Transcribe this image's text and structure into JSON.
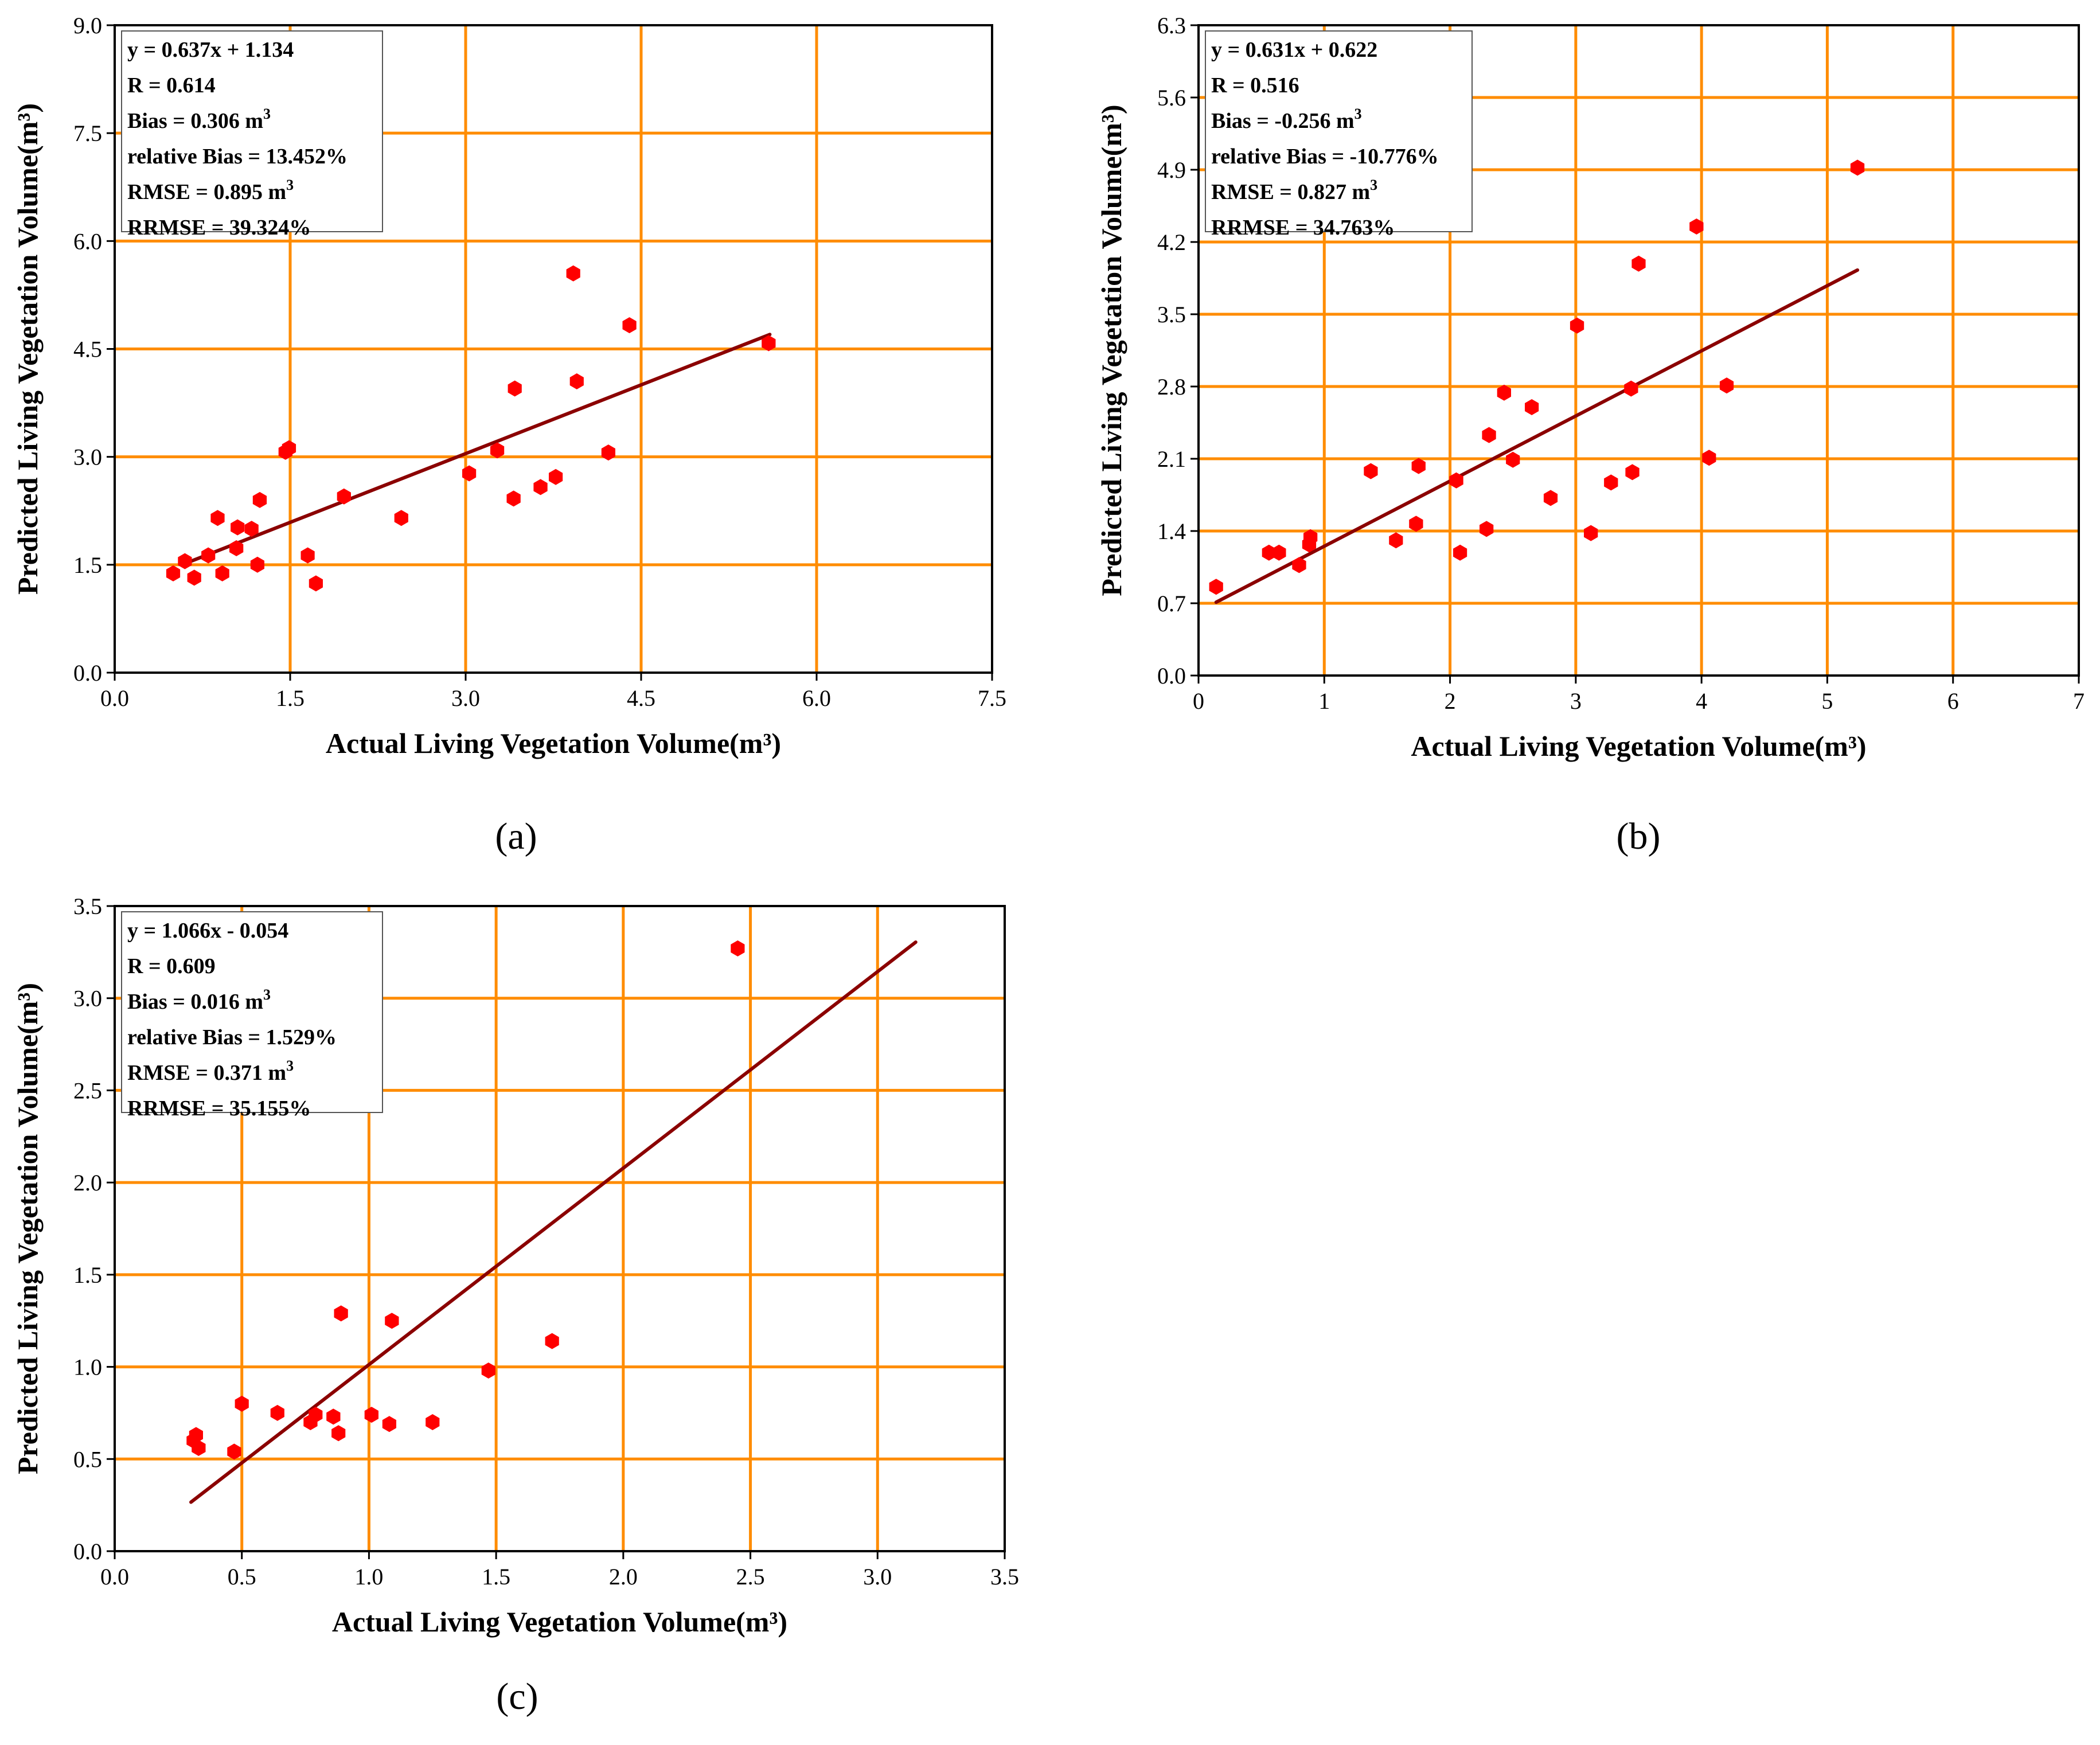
{
  "colors": {
    "grid": "#ff8c00",
    "point": "#ff0000",
    "line": "#8b0000",
    "axis": "#000000"
  },
  "chart_data": [
    {
      "type": "scatter",
      "panel": "(a)",
      "xlabel": "Actual Living Vegetation Volume(m³)",
      "ylabel": "Predicted Living Vegetation Volume(m³)",
      "xlim": [
        0,
        7.5
      ],
      "ylim": [
        0,
        9.0
      ],
      "xticks": [
        "0.0",
        "1.5",
        "3.0",
        "4.5",
        "6.0",
        "7.5"
      ],
      "yticks": [
        "0.0",
        "1.5",
        "3.0",
        "4.5",
        "6.0",
        "7.5",
        "9.0"
      ],
      "fit": {
        "x0": 0.6,
        "y0": 1.516,
        "x1": 5.6,
        "y1": 4.701
      },
      "stats": [
        {
          "text": "y = 0.637x + 1.134",
          "sup": ""
        },
        {
          "text": "R = 0.614",
          "sup": ""
        },
        {
          "text": "Bias = 0.306 m",
          "sup": "3"
        },
        {
          "text": "relative Bias = 13.452%",
          "sup": ""
        },
        {
          "text": "RMSE = 0.895 m",
          "sup": "3"
        },
        {
          "text": "RRMSE = 39.324%",
          "sup": ""
        }
      ],
      "points": [
        [
          0.5,
          1.38
        ],
        [
          0.6,
          1.55
        ],
        [
          0.68,
          1.32
        ],
        [
          0.8,
          1.63
        ],
        [
          0.88,
          2.15
        ],
        [
          0.92,
          1.38
        ],
        [
          1.04,
          1.73
        ],
        [
          1.05,
          2.02
        ],
        [
          1.17,
          2.0
        ],
        [
          1.22,
          1.5
        ],
        [
          1.24,
          2.4
        ],
        [
          1.46,
          3.07
        ],
        [
          1.49,
          3.12
        ],
        [
          1.65,
          1.63
        ],
        [
          1.72,
          1.24
        ],
        [
          1.96,
          2.45
        ],
        [
          2.45,
          2.15
        ],
        [
          3.03,
          2.77
        ],
        [
          3.27,
          3.09
        ],
        [
          3.41,
          2.42
        ],
        [
          3.42,
          3.95
        ],
        [
          3.64,
          2.58
        ],
        [
          3.77,
          2.72
        ],
        [
          3.92,
          5.55
        ],
        [
          3.95,
          4.05
        ],
        [
          4.22,
          3.06
        ],
        [
          4.4,
          4.83
        ],
        [
          5.59,
          4.58
        ]
      ]
    },
    {
      "type": "scatter",
      "panel": "(b)",
      "xlabel": "Actual Living Vegetation Volume(m³)",
      "ylabel": "Predicted Living Vegetation Volume(m³)",
      "xlim": [
        0,
        7
      ],
      "ylim": [
        0,
        6.3
      ],
      "xticks": [
        "0",
        "1",
        "2",
        "3",
        "4",
        "5",
        "6",
        "7"
      ],
      "yticks": [
        "0.0",
        "0.7",
        "1.4",
        "2.1",
        "2.8",
        "3.5",
        "4.2",
        "4.9",
        "5.6",
        "6.3"
      ],
      "fit": {
        "x0": 0.14,
        "y0": 0.71,
        "x1": 5.24,
        "y1": 3.928
      },
      "stats": [
        {
          "text": "y = 0.631x + 0.622",
          "sup": ""
        },
        {
          "text": "R = 0.516",
          "sup": ""
        },
        {
          "text": "Bias = -0.256 m",
          "sup": "3"
        },
        {
          "text": "relative Bias = -10.776%",
          "sup": ""
        },
        {
          "text": "RMSE = 0.827 m",
          "sup": "3"
        },
        {
          "text": "RRMSE = 34.763%",
          "sup": ""
        }
      ],
      "points": [
        [
          0.14,
          0.86
        ],
        [
          0.56,
          1.19
        ],
        [
          0.64,
          1.19
        ],
        [
          0.8,
          1.07
        ],
        [
          0.88,
          1.27
        ],
        [
          0.89,
          1.34
        ],
        [
          1.37,
          1.98
        ],
        [
          1.57,
          1.31
        ],
        [
          1.73,
          1.47
        ],
        [
          1.75,
          2.03
        ],
        [
          2.05,
          1.89
        ],
        [
          2.08,
          1.19
        ],
        [
          2.29,
          1.42
        ],
        [
          2.31,
          2.33
        ],
        [
          2.43,
          2.74
        ],
        [
          2.5,
          2.09
        ],
        [
          2.65,
          2.6
        ],
        [
          2.8,
          1.72
        ],
        [
          3.01,
          3.39
        ],
        [
          3.12,
          1.38
        ],
        [
          3.28,
          1.87
        ],
        [
          3.44,
          2.78
        ],
        [
          3.45,
          1.97
        ],
        [
          3.5,
          3.99
        ],
        [
          3.96,
          4.35
        ],
        [
          4.06,
          2.11
        ],
        [
          4.2,
          2.81
        ],
        [
          5.24,
          4.92
        ]
      ]
    },
    {
      "type": "scatter",
      "panel": "(c)",
      "xlabel": "Actual Living Vegetation Volume(m³)",
      "ylabel": "Predicted Living Vegetation Volume(m³)",
      "xlim": [
        0,
        3.5
      ],
      "ylim": [
        0,
        3.5
      ],
      "xticks": [
        "0.0",
        "0.5",
        "1.0",
        "1.5",
        "2.0",
        "2.5",
        "3.0",
        "3.5"
      ],
      "yticks": [
        "0.0",
        "0.5",
        "1.0",
        "1.5",
        "2.0",
        "2.5",
        "3.0",
        "3.5"
      ],
      "fit": {
        "x0": 0.3,
        "y0": 0.266,
        "x1": 3.15,
        "y1": 3.304
      },
      "stats": [
        {
          "text": "y = 1.066x - 0.054",
          "sup": ""
        },
        {
          "text": "R = 0.609",
          "sup": ""
        },
        {
          "text": "Bias = 0.016 m",
          "sup": "3"
        },
        {
          "text": "relative Bias = 1.529%",
          "sup": ""
        },
        {
          "text": "RMSE = 0.371 m",
          "sup": "3"
        },
        {
          "text": "RRMSE = 35.155%",
          "sup": ""
        }
      ],
      "points": [
        [
          0.31,
          0.6
        ],
        [
          0.32,
          0.63
        ],
        [
          0.33,
          0.56
        ],
        [
          0.47,
          0.54
        ],
        [
          0.5,
          0.8
        ],
        [
          0.64,
          0.75
        ],
        [
          0.77,
          0.7
        ],
        [
          0.79,
          0.74
        ],
        [
          0.86,
          0.73
        ],
        [
          0.88,
          0.64
        ],
        [
          0.89,
          1.29
        ],
        [
          1.01,
          0.74
        ],
        [
          1.08,
          0.69
        ],
        [
          1.09,
          1.25
        ],
        [
          1.25,
          0.7
        ],
        [
          1.47,
          0.98
        ],
        [
          1.72,
          1.14
        ],
        [
          2.45,
          3.27
        ]
      ]
    }
  ]
}
